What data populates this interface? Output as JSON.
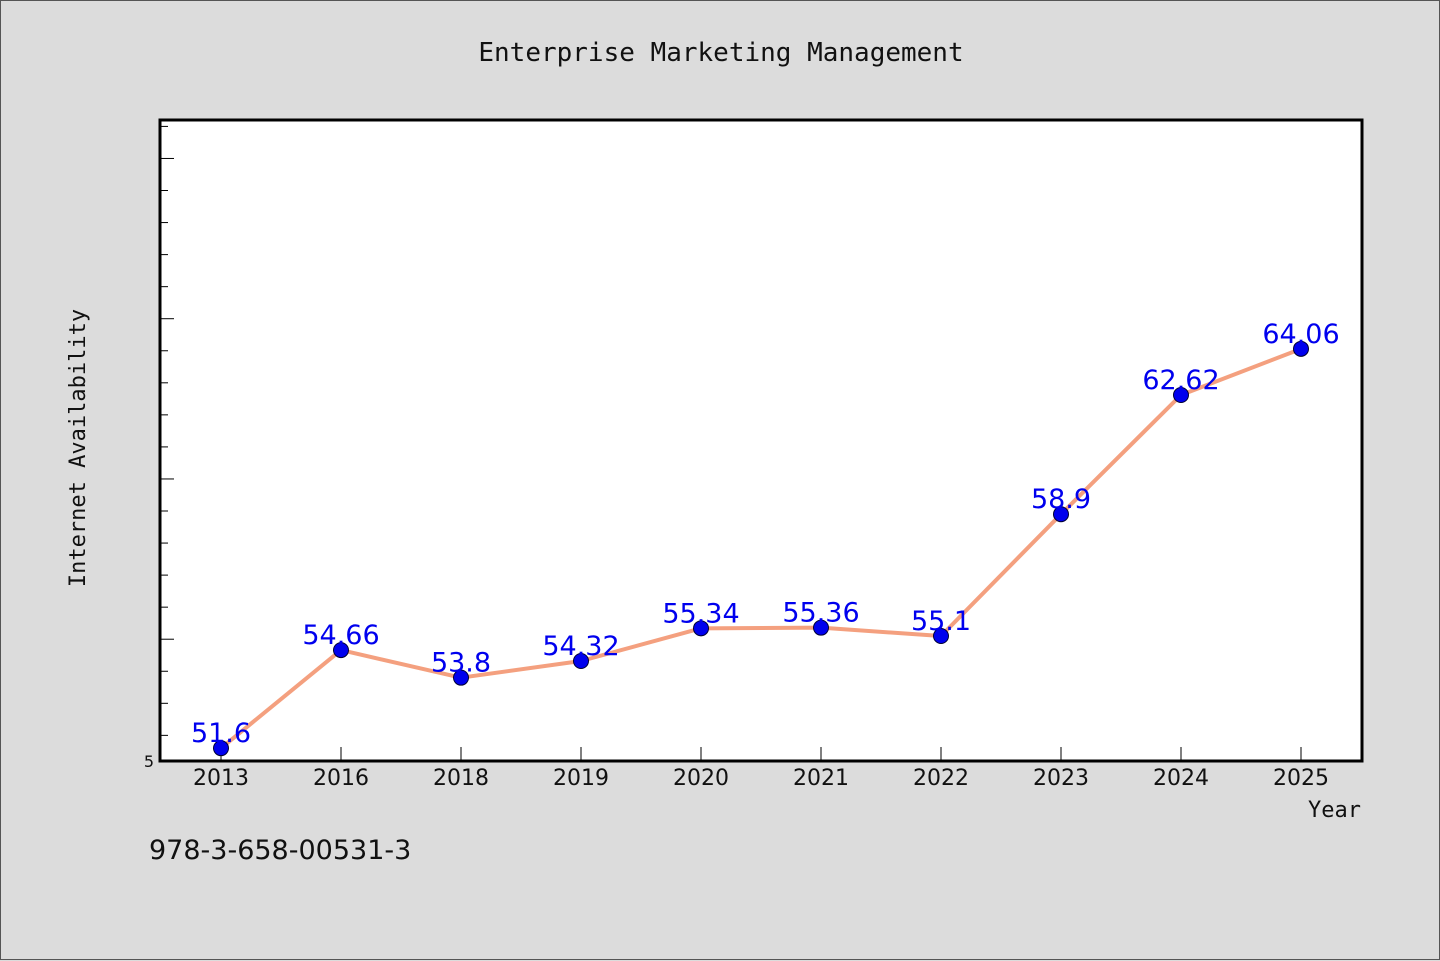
{
  "isbn_text": "978-3-658-00531-3",
  "colors": {
    "background": "#dcdcdc",
    "plot_background": "#ffffff",
    "line": "#f4a07f",
    "marker": "#0000ee",
    "data_label": "#0000ee",
    "text": "#111111"
  },
  "chart_data": {
    "type": "line",
    "title": "Enterprise Marketing Management",
    "xlabel": "Year",
    "ylabel": "Internet Availability",
    "categories": [
      "2013",
      "2016",
      "2018",
      "2019",
      "2020",
      "2021",
      "2022",
      "2023",
      "2024",
      "2025"
    ],
    "series": [
      {
        "values": [
          51.6,
          54.66,
          53.8,
          54.32,
          55.34,
          55.36,
          55.1,
          58.9,
          62.62,
          64.06
        ],
        "labels": [
          "51.6",
          "54.66",
          "53.8",
          "54.32",
          "55.34",
          "55.36",
          "55.1",
          "58.9",
          "62.62",
          "64.06"
        ]
      }
    ],
    "ylim": [
      51.2,
      71.2
    ],
    "y_tick_labels": [
      {
        "value": 51.2,
        "label": "5"
      }
    ],
    "y_minor_tick_step": 1,
    "y_major_tick_step": 5,
    "grid": false,
    "legend": "none"
  }
}
